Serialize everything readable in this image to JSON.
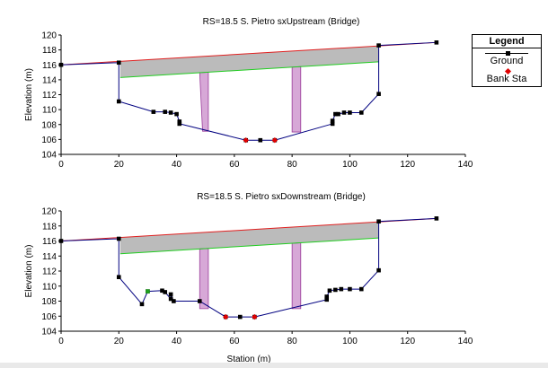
{
  "colors": {
    "ground": "#000080",
    "ground_marker": "#000000",
    "bank": "#e00000",
    "deck": "#bbbbbb",
    "pier": "#d7a8d7",
    "pier_edge": "#9a3c9a",
    "ws_upper": "#e02020",
    "ws_lower": "#20cc20",
    "extra_marker": "#20a020"
  },
  "legend": {
    "title": "Legend",
    "items": [
      {
        "label": "Ground",
        "symbol": "square-line"
      },
      {
        "label": "Bank Sta",
        "symbol": "diamond"
      }
    ]
  },
  "chart_data": [
    {
      "type": "line",
      "title": "RS=18.5    S. Pietro sxUpstream  (Bridge)",
      "xlabel": "",
      "ylabel": "Elevation (m)",
      "xlim": [
        0,
        140
      ],
      "ylim": [
        104,
        120
      ],
      "xticks": [
        0,
        20,
        40,
        60,
        80,
        100,
        120,
        140
      ],
      "yticks": [
        104,
        106,
        108,
        110,
        112,
        114,
        116,
        118,
        120
      ],
      "series": [
        {
          "name": "High chord",
          "role": "upper",
          "x": [
            0,
            130
          ],
          "y": [
            116.0,
            119.0
          ]
        },
        {
          "name": "Low chord",
          "role": "lower",
          "x": [
            20.5,
            110
          ],
          "y": [
            114.3,
            116.4
          ]
        },
        {
          "name": "Ground",
          "role": "ground",
          "x": [
            0,
            20,
            20,
            32,
            36,
            38,
            40,
            41,
            41,
            64,
            69,
            74,
            94,
            94,
            95,
            96,
            98,
            100,
            104,
            110,
            110,
            130
          ],
          "y": [
            116.0,
            116.3,
            111.1,
            109.7,
            109.7,
            109.6,
            109.4,
            108.4,
            108.1,
            105.9,
            105.9,
            105.9,
            108.1,
            108.5,
            109.4,
            109.4,
            109.6,
            109.6,
            109.6,
            112.1,
            118.6,
            119.0
          ]
        }
      ],
      "bank_stations": [
        {
          "x": 64,
          "y": 105.9
        },
        {
          "x": 74,
          "y": 105.9
        }
      ],
      "piers": [
        {
          "x_left": 48,
          "x_right": 51,
          "x_bottom_left": 49,
          "x_bottom_right": 51,
          "y_bottom": 107.1
        },
        {
          "x_left": 80,
          "x_right": 83,
          "x_bottom_left": 80,
          "x_bottom_right": 83,
          "y_bottom": 107.0
        }
      ]
    },
    {
      "type": "line",
      "title": "RS=18.5    S. Pietro sxDownstream  (Bridge)",
      "xlabel": "Station (m)",
      "ylabel": "Elevation (m)",
      "xlim": [
        0,
        140
      ],
      "ylim": [
        104,
        120
      ],
      "xticks": [
        0,
        20,
        40,
        60,
        80,
        100,
        120,
        140
      ],
      "yticks": [
        104,
        106,
        108,
        110,
        112,
        114,
        116,
        118,
        120
      ],
      "series": [
        {
          "name": "High chord",
          "role": "upper",
          "x": [
            0,
            130
          ],
          "y": [
            116.0,
            119.0
          ]
        },
        {
          "name": "Low chord",
          "role": "lower",
          "x": [
            20.5,
            110
          ],
          "y": [
            114.3,
            116.4
          ]
        },
        {
          "name": "Ground",
          "role": "ground",
          "x": [
            0,
            20,
            20,
            28,
            30,
            35,
            36,
            38,
            38,
            39,
            48,
            57,
            62,
            67,
            92,
            92,
            93,
            95,
            97,
            100,
            104,
            110,
            110,
            130
          ],
          "y": [
            116.0,
            116.3,
            111.2,
            107.6,
            109.3,
            109.4,
            109.2,
            108.3,
            108.9,
            108.0,
            108.0,
            105.9,
            105.9,
            105.9,
            108.2,
            108.6,
            109.4,
            109.5,
            109.6,
            109.6,
            109.6,
            112.1,
            118.6,
            119.0
          ]
        }
      ],
      "bank_stations": [
        {
          "x": 57,
          "y": 105.9
        },
        {
          "x": 67,
          "y": 105.9
        }
      ],
      "extra_markers": [
        {
          "x": 30,
          "y": 109.3
        }
      ],
      "piers": [
        {
          "x_left": 48,
          "x_right": 51,
          "x_bottom_left": 48,
          "x_bottom_right": 51,
          "y_bottom": 107.0
        },
        {
          "x_left": 80,
          "x_right": 83,
          "x_bottom_left": 80,
          "x_bottom_right": 83,
          "y_bottom": 107.0
        }
      ]
    }
  ]
}
